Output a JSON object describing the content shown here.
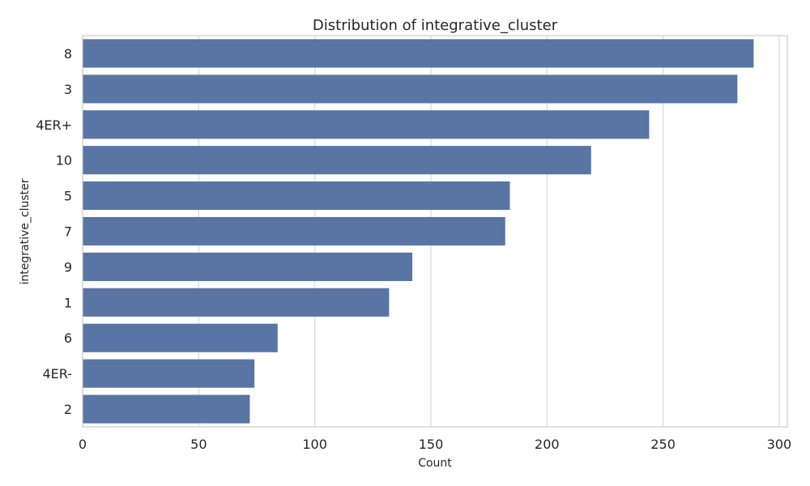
{
  "chart_data": {
    "type": "bar",
    "orientation": "horizontal",
    "title": "Distribution of integrative_cluster",
    "xlabel": "Count",
    "ylabel": "integrative_cluster",
    "categories": [
      "8",
      "3",
      "4ER+",
      "10",
      "5",
      "7",
      "9",
      "1",
      "6",
      "4ER-",
      "2"
    ],
    "values": [
      289,
      282,
      244,
      219,
      184,
      182,
      142,
      132,
      84,
      74,
      72
    ],
    "x_ticks": [
      "0",
      "50",
      "100",
      "150",
      "200",
      "250",
      "300"
    ],
    "xlim": [
      0,
      303.5
    ],
    "grid": true,
    "bar_color": "#5875a4"
  }
}
